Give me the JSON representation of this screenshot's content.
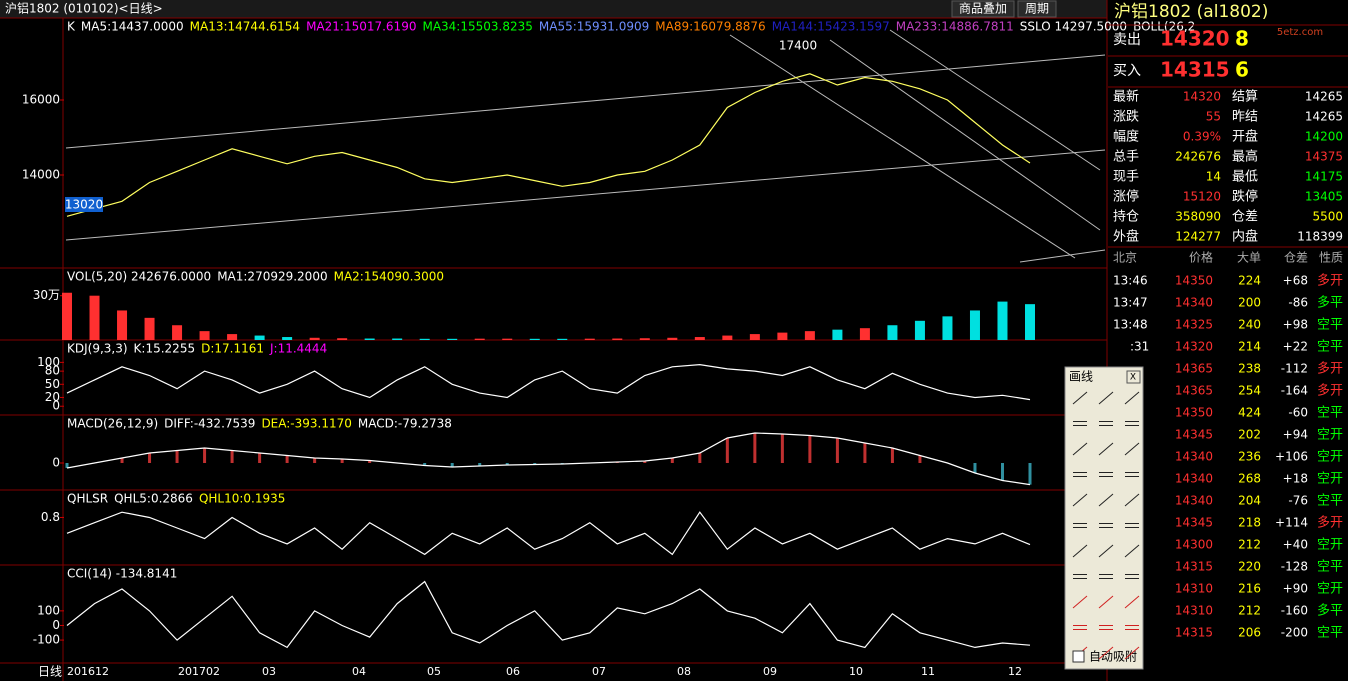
{
  "header": {
    "title": "沪铝1802 (010102)<日线>",
    "buttons": [
      "商品叠加",
      "周期"
    ]
  },
  "main": {
    "legend": [
      {
        "text": "K",
        "color": "#ffffff"
      },
      {
        "text": "MA5:14437.0000",
        "color": "#ffffff"
      },
      {
        "text": "MA13:14744.6154",
        "color": "#ffff00"
      },
      {
        "text": "MA21:15017.6190",
        "color": "#ff00ff"
      },
      {
        "text": "MA34:15503.8235",
        "color": "#00ff00"
      },
      {
        "text": "MA55:15931.0909",
        "color": "#6f8fff"
      },
      {
        "text": "MA89:16079.8876",
        "color": "#ff8000"
      },
      {
        "text": "MA144:15423.1597",
        "color": "#2020c0"
      },
      {
        "text": "MA233:14886.7811",
        "color": "#c040c0"
      },
      {
        "text": "SSLO 14297.5000",
        "color": "#ffffff"
      },
      {
        "text": "BOLL(26,2",
        "color": "#ffffff"
      }
    ],
    "ylim": [
      11520,
      18187
    ],
    "yticks": [
      16000,
      14000
    ],
    "high_label": "17400",
    "low_label": "13020",
    "close": [
      12900,
      13100,
      13300,
      13800,
      14100,
      14400,
      14700,
      14500,
      14300,
      14500,
      14600,
      14400,
      14200,
      13900,
      13800,
      13900,
      14000,
      13850,
      13700,
      13800,
      14000,
      14100,
      14400,
      14800,
      15800,
      16200,
      16500,
      16700,
      16400,
      16600,
      16500,
      16300,
      16000,
      15400,
      14800,
      14320
    ]
  },
  "vol": {
    "legend": [
      {
        "text": "VOL(5,20) 242676.0000",
        "color": "#ffffff"
      },
      {
        "text": "MA1:270929.2000",
        "color": "#ffffff"
      },
      {
        "text": "MA2:154090.3000",
        "color": "#ffff00"
      }
    ],
    "ylim": [
      0,
      487500
    ],
    "yticks": [
      {
        "value": 300000,
        "label": "30万"
      }
    ],
    "values": [
      320000,
      300000,
      200000,
      150000,
      100000,
      60000,
      40000,
      30000,
      20000,
      15000,
      12000,
      10000,
      10000,
      8000,
      8000,
      9000,
      9000,
      8000,
      8000,
      9000,
      10000,
      12000,
      15000,
      20000,
      30000,
      40000,
      50000,
      60000,
      70000,
      80000,
      100000,
      130000,
      160000,
      200000,
      260000,
      242676
    ]
  },
  "kdj": {
    "legend": [
      {
        "text": "KDJ(9,3,3)",
        "color": "#ffffff"
      },
      {
        "text": "K:15.2255",
        "color": "#ffffff"
      },
      {
        "text": "D:17.1161",
        "color": "#ffff00"
      },
      {
        "text": "J:11.4444",
        "color": "#ff00ff"
      }
    ],
    "ylim": [
      -20,
      151
    ],
    "yticks": [
      100,
      80,
      50,
      20,
      0
    ],
    "values": [
      30,
      60,
      90,
      70,
      40,
      80,
      60,
      30,
      50,
      80,
      40,
      20,
      60,
      90,
      50,
      30,
      20,
      60,
      80,
      40,
      30,
      70,
      90,
      95,
      85,
      80,
      70,
      90,
      60,
      40,
      75,
      50,
      30,
      20,
      25,
      15
    ]
  },
  "macd": {
    "legend": [
      {
        "text": "MACD(26,12,9)",
        "color": "#ffffff"
      },
      {
        "text": "DIFF:-432.7539",
        "color": "#ffffff"
      },
      {
        "text": "DEA:-393.1170",
        "color": "#ffff00"
      },
      {
        "text": "MACD:-79.2738",
        "color": "#ffffff"
      }
    ],
    "ylim": [
      -540,
      960
    ],
    "yticks": [
      0
    ],
    "values": [
      -100,
      0,
      100,
      200,
      250,
      300,
      250,
      200,
      150,
      100,
      80,
      50,
      0,
      -50,
      -80,
      -60,
      -40,
      -30,
      -20,
      0,
      20,
      40,
      100,
      200,
      500,
      600,
      580,
      550,
      500,
      400,
      300,
      150,
      0,
      -200,
      -350,
      -432
    ]
  },
  "qhlsr": {
    "legend": [
      {
        "text": "QHLSR",
        "color": "#ffffff"
      },
      {
        "text": "QHL5:0.2866",
        "color": "#ffffff"
      },
      {
        "text": "QHL10:0.1935",
        "color": "#ffff00"
      }
    ],
    "ylim": [
      -0.1,
      1.32
    ],
    "yticks": [
      0.8
    ],
    "values": [
      0.5,
      0.7,
      0.9,
      0.8,
      0.6,
      0.4,
      0.8,
      0.5,
      0.3,
      0.6,
      0.2,
      0.7,
      0.4,
      0.1,
      0.5,
      0.3,
      0.6,
      0.2,
      0.4,
      0.7,
      0.3,
      0.5,
      0.1,
      0.9,
      0.2,
      0.6,
      0.3,
      0.5,
      0.2,
      0.4,
      0.6,
      0.2,
      0.4,
      0.3,
      0.5,
      0.2866
    ]
  },
  "cci": {
    "legend": [
      {
        "text": "CCI(14) -134.8141",
        "color": "#ffffff"
      }
    ],
    "ylim": [
      -257,
      414
    ],
    "yticks": [
      100,
      0,
      -100
    ],
    "values": [
      0,
      150,
      250,
      100,
      -100,
      50,
      200,
      -50,
      -150,
      100,
      0,
      -80,
      150,
      300,
      -50,
      -120,
      0,
      100,
      -100,
      -50,
      120,
      80,
      150,
      250,
      100,
      50,
      -50,
      150,
      -100,
      -150,
      80,
      -50,
      -100,
      -150,
      -120,
      -134.8141
    ]
  },
  "xaxis": {
    "period": "日线",
    "labels": [
      "201612",
      "201702",
      "03",
      "04",
      "05",
      "06",
      "07",
      "08",
      "09",
      "10",
      "11",
      "12"
    ]
  },
  "quote": {
    "name": "沪铝1802 (al1802)",
    "watermark": "5etz.com",
    "sell": {
      "label": "卖出",
      "price": "14320",
      "qty": "8"
    },
    "buy": {
      "label": "买入",
      "price": "14315",
      "qty": "6"
    },
    "rows": [
      [
        "最新",
        "14320",
        "结算",
        "14265"
      ],
      [
        "涨跌",
        "55",
        "昨结",
        "14265"
      ],
      [
        "幅度",
        "0.39%",
        "开盘",
        "14200"
      ],
      [
        "总手",
        "242676",
        "最高",
        "14375"
      ],
      [
        "现手",
        "14",
        "最低",
        "14175"
      ],
      [
        "涨停",
        "15120",
        "跌停",
        "13405"
      ],
      [
        "持仓",
        "358090",
        "仓差",
        "5500"
      ],
      [
        "外盘",
        "124277",
        "内盘",
        "118399"
      ]
    ]
  },
  "trades": {
    "header": [
      "北京",
      "价格",
      "大单",
      "仓差",
      "性质"
    ],
    "rows": [
      [
        "13:46",
        "14350",
        "224",
        "+68",
        "多开"
      ],
      [
        "13:47",
        "14340",
        "200",
        "-86",
        "多平"
      ],
      [
        "13:48",
        "14325",
        "240",
        "+98",
        "空平"
      ],
      [
        ":31",
        "14320",
        "214",
        "+22",
        "空平"
      ],
      [
        null,
        "14365",
        "238",
        "-112",
        "多开"
      ],
      [
        null,
        "14365",
        "254",
        "-164",
        "多开"
      ],
      [
        null,
        "14350",
        "424",
        "-60",
        "空平"
      ],
      [
        null,
        "14345",
        "202",
        "+94",
        "空开"
      ],
      [
        null,
        "14340",
        "236",
        "+106",
        "空开"
      ],
      [
        null,
        "14340",
        "268",
        "+18",
        "空开"
      ],
      [
        null,
        "14340",
        "204",
        "-76",
        "空平"
      ],
      [
        null,
        "14345",
        "218",
        "+114",
        "多开"
      ],
      [
        null,
        "14300",
        "212",
        "+40",
        "空开"
      ],
      [
        null,
        "14315",
        "220",
        "-128",
        "空平"
      ],
      [
        null,
        "14310",
        "216",
        "+90",
        "空开"
      ],
      [
        null,
        "14310",
        "212",
        "-160",
        "多平"
      ],
      [
        null,
        "14315",
        "206",
        "-200",
        "空平"
      ]
    ]
  },
  "toolbar": {
    "title": "画线",
    "close": "X",
    "checkbox": "自动吸附"
  }
}
